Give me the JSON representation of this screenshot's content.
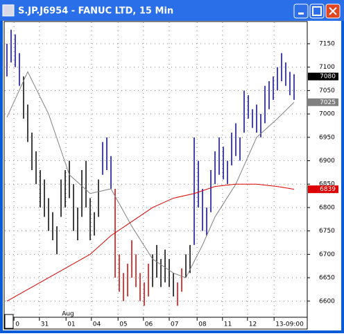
{
  "chart_data": {
    "type": "ohlc_bars",
    "title": "S.JP.J6954 - FANUC LTD, 15 Min",
    "ylim": [
      6567,
      7196
    ],
    "yticks": [
      6600,
      6650,
      6700,
      6750,
      6800,
      6850,
      6900,
      6950,
      7000,
      7050,
      7100,
      7150
    ],
    "xlim": [
      0,
      72
    ],
    "xticks": [
      {
        "value": 1.7,
        "label": "0"
      },
      {
        "value": 7.8,
        "label": "31"
      },
      {
        "value": 14.2,
        "label": "01"
      },
      {
        "value": 20.3,
        "label": "04"
      },
      {
        "value": 26.7,
        "label": "05"
      },
      {
        "value": 32.8,
        "label": "06"
      },
      {
        "value": 39,
        "label": "07"
      },
      {
        "value": 45.7,
        "label": "08"
      },
      {
        "value": 51.8,
        "label": "11"
      },
      {
        "value": 57.8,
        "label": "12"
      },
      {
        "value": 64.2,
        "label": "13-09:00"
      }
    ],
    "annotation": "Aug",
    "grid": true,
    "segments": [
      {
        "color": "#0000cc",
        "x": [
          0,
          1,
          2,
          3
        ],
        "high": [
          7150,
          7180,
          7170,
          7130
        ],
        "low": [
          7080,
          7110,
          7100,
          7060
        ]
      },
      {
        "color": "#000000",
        "x": [
          4,
          5,
          6,
          7,
          8,
          9,
          10,
          11,
          12,
          13,
          14,
          15,
          16,
          17,
          18,
          19,
          20,
          21,
          22
        ],
        "high": [
          7080,
          7020,
          6960,
          6920,
          6880,
          6860,
          6820,
          6790,
          6760,
          6860,
          6880,
          6900,
          6850,
          6800,
          6880,
          6900,
          6820,
          6790,
          6860
        ],
        "low": [
          6990,
          6940,
          6880,
          6850,
          6800,
          6780,
          6750,
          6730,
          6700,
          6780,
          6800,
          6820,
          6750,
          6730,
          6780,
          6800,
          6730,
          6740,
          6780
        ]
      },
      {
        "color": "#0000cc",
        "x": [
          23,
          24,
          25
        ],
        "high": [
          6940,
          6950,
          6910
        ],
        "low": [
          6870,
          6880,
          6840
        ]
      },
      {
        "color": "#cc0000",
        "x": [
          26,
          27,
          28,
          29,
          30,
          31,
          32,
          33,
          34
        ],
        "high": [
          6840,
          6700,
          6660,
          6680,
          6730,
          6700,
          6660,
          6640,
          6680
        ],
        "low": [
          6650,
          6620,
          6600,
          6610,
          6650,
          6630,
          6600,
          6590,
          6610
        ]
      },
      {
        "color": "#000000",
        "x": [
          35,
          36,
          37,
          38,
          39,
          40
        ],
        "high": [
          6700,
          6720,
          6690,
          6710,
          6690,
          6660
        ],
        "low": [
          6630,
          6650,
          6630,
          6640,
          6630,
          6610
        ]
      },
      {
        "color": "#cc0000",
        "x": [
          41,
          42
        ],
        "high": [
          6640,
          6670
        ],
        "low": [
          6590,
          6620
        ]
      },
      {
        "color": "#000000",
        "x": [
          43,
          44
        ],
        "high": [
          6700,
          6720
        ],
        "low": [
          6650,
          6660
        ]
      },
      {
        "color": "#0000cc",
        "x": [
          45,
          46,
          47,
          48,
          49,
          50,
          51,
          52,
          53,
          54,
          55,
          56,
          57,
          58,
          59,
          60,
          61,
          62,
          63,
          64,
          65,
          66,
          67,
          68,
          69
        ],
        "high": [
          6950,
          6900,
          6840,
          6800,
          6880,
          6920,
          6950,
          6930,
          6900,
          6960,
          6980,
          6950,
          7050,
          7040,
          7010,
          7020,
          7000,
          7060,
          7070,
          7080,
          7100,
          7130,
          7110,
          7090,
          7085
        ],
        "low": [
          6720,
          6800,
          6750,
          6740,
          6790,
          6850,
          6870,
          6860,
          6850,
          6890,
          6910,
          6900,
          6960,
          6990,
          6970,
          6960,
          6950,
          6980,
          7010,
          7030,
          7050,
          7070,
          7060,
          7040,
          7030
        ]
      }
    ],
    "lines": [
      {
        "color": "#808080",
        "x": [
          0,
          5,
          10,
          15,
          20,
          25,
          30,
          35,
          40,
          43,
          47,
          50,
          55,
          60,
          65,
          69
        ],
        "values": [
          6993,
          7090,
          7000,
          6870,
          6830,
          6840,
          6760,
          6690,
          6660,
          6650,
          6720,
          6780,
          6850,
          6950,
          6990,
          7025
        ]
      },
      {
        "color": "#dd0000",
        "x": [
          0,
          10,
          20,
          25,
          30,
          35,
          40,
          45,
          50,
          55,
          60,
          65,
          69
        ],
        "values": [
          6600,
          6650,
          6700,
          6740,
          6770,
          6800,
          6820,
          6830,
          6845,
          6850,
          6850,
          6845,
          6839
        ]
      }
    ],
    "price_markers": [
      {
        "value": 7080,
        "color": "#000000"
      },
      {
        "value": 7025,
        "color": "#808080"
      },
      {
        "value": 6839,
        "color": "#dd0000"
      }
    ]
  }
}
